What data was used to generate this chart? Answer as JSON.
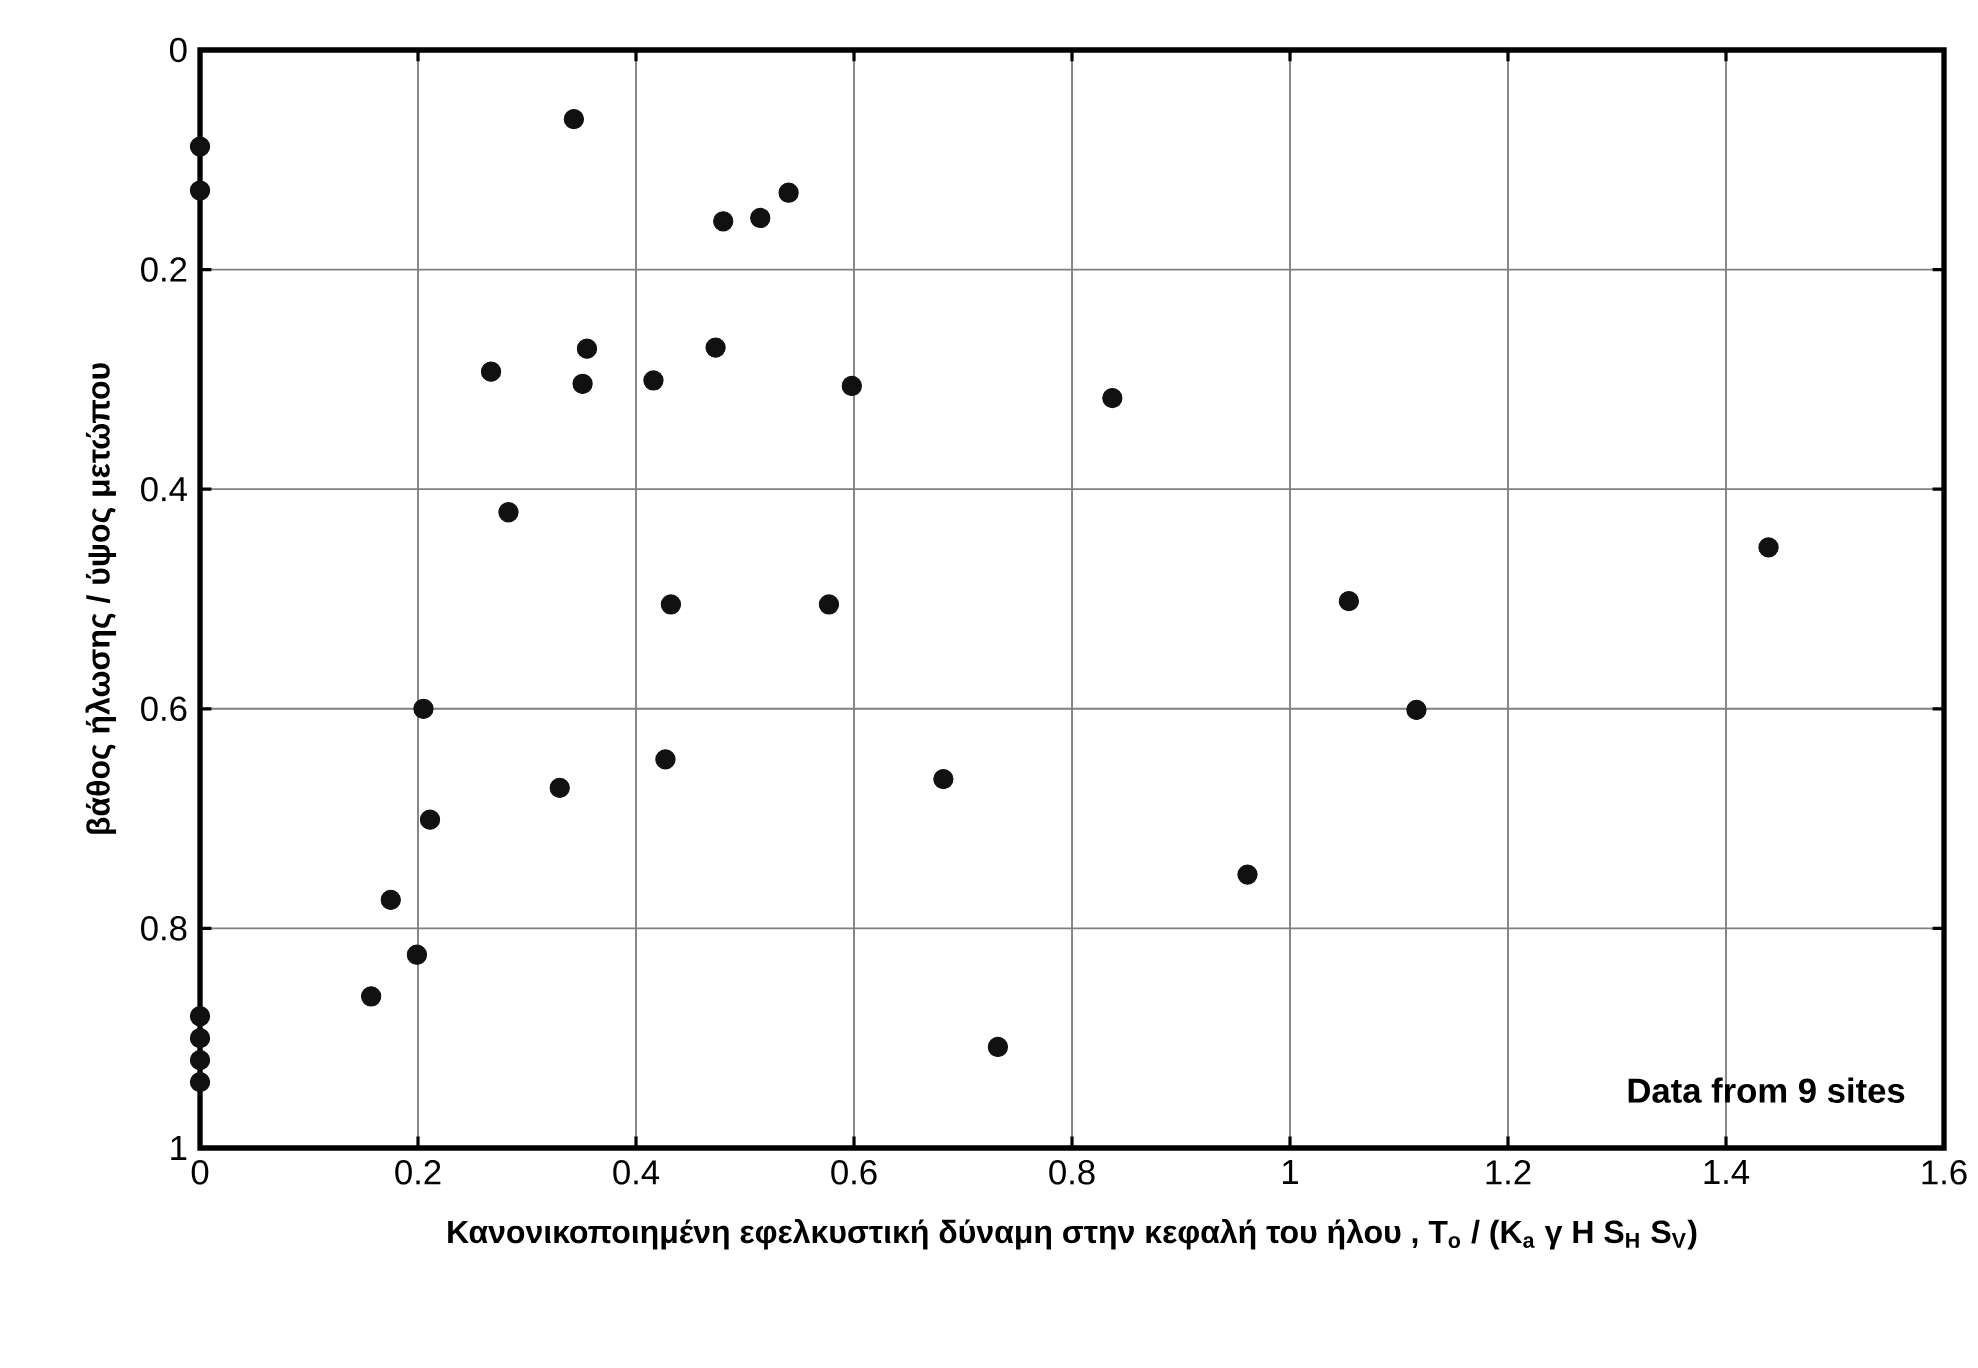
{
  "chart_data": {
    "type": "scatter",
    "xlabel": "Κανονικοποιημένη εφελκυστική δύναμη στην κεφαλή του ήλου , T$_{o}$ / (K$_{a}$ γ H S$_{H}$ S$_{V}$)",
    "ylabel": "βάθος ήλωσης / ύψος μετώπου",
    "annotations": [
      "Data from 9 sites"
    ],
    "series": [
      {
        "color": "#111111",
        "x": [
          0,
          0,
          0.343,
          0.48,
          0.514,
          0.54,
          0.355,
          0.267,
          0.351,
          0.416,
          0.473,
          0.598,
          0.283,
          0.432,
          0.577,
          0.205,
          0.427,
          0.33,
          0.211,
          0.175,
          0.199,
          0.157,
          0,
          0,
          0,
          0,
          0.837,
          1.439,
          1.054,
          1.116,
          0.682,
          0.961,
          0.732
        ],
        "values": [
          0.088,
          0.128,
          0.063,
          0.156,
          0.153,
          0.13,
          0.272,
          0.293,
          0.304,
          0.301,
          0.271,
          0.306,
          0.421,
          0.505,
          0.505,
          0.6,
          0.646,
          0.672,
          0.701,
          0.774,
          0.824,
          0.862,
          0.88,
          0.9,
          0.92,
          0.94,
          0.317,
          0.453,
          0.502,
          0.601,
          0.664,
          0.751,
          0.908
        ]
      }
    ],
    "xlim": [
      0,
      1.6
    ],
    "ylim": [
      1,
      0
    ],
    "xticks": [
      0,
      0.2,
      0.4,
      0.6,
      0.8,
      1,
      1.2,
      1.4,
      1.6
    ],
    "yticks": [
      0,
      0.2,
      0.4,
      0.6,
      0.8,
      1
    ],
    "grid": true,
    "marker": "circle"
  }
}
